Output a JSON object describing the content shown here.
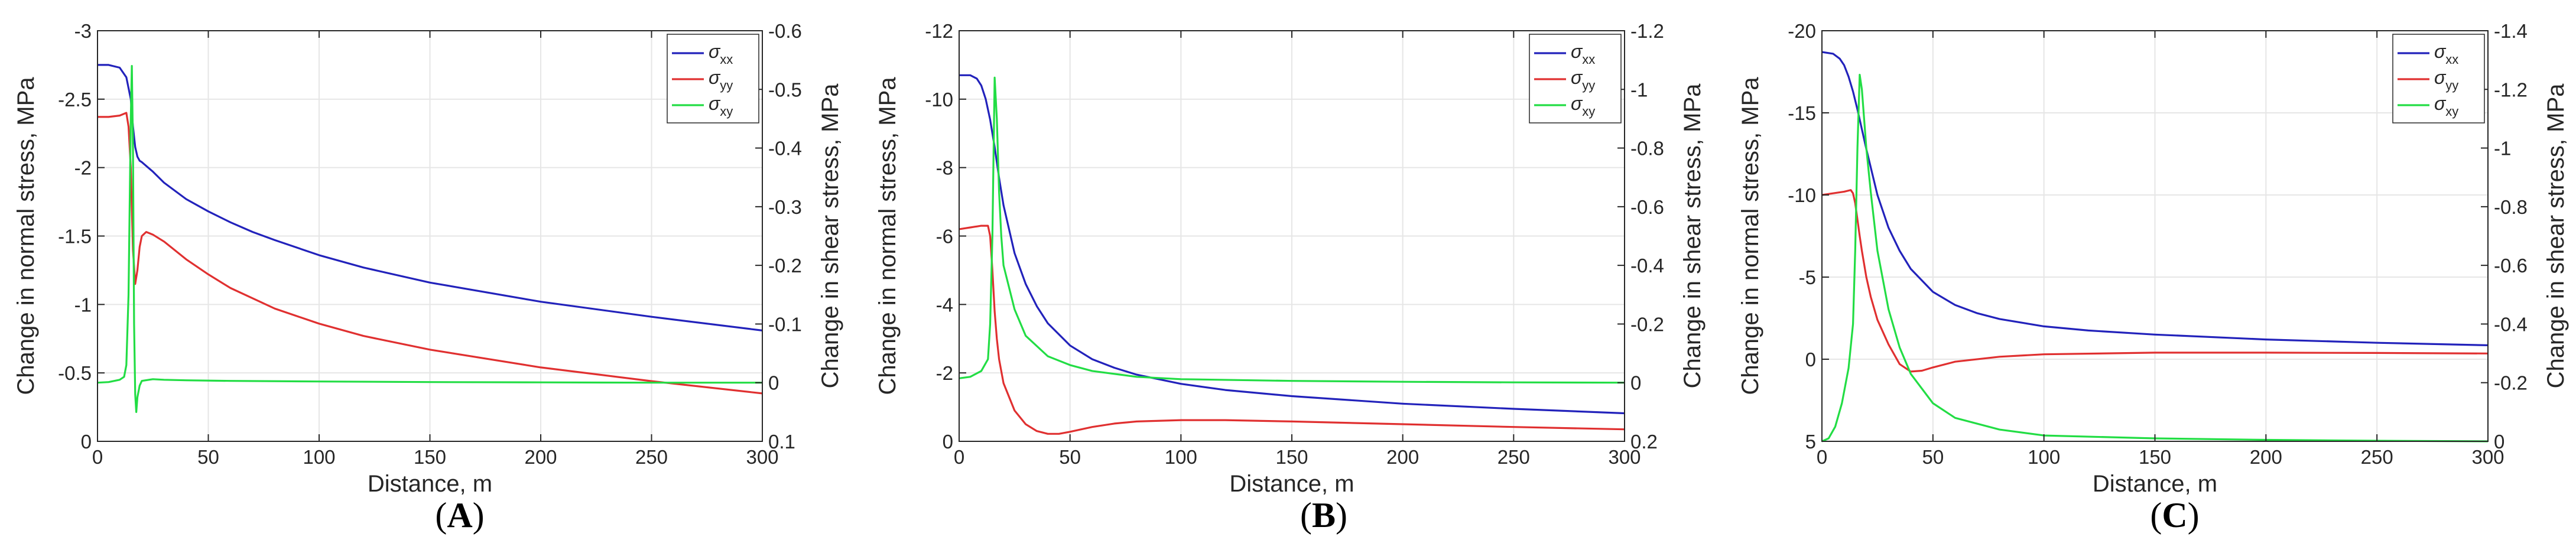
{
  "chart_data": [
    {
      "type": "line",
      "panel_label": "A",
      "xlabel": "Distance, m",
      "ylabel_left": "Change in normal stress, MPa",
      "ylabel_right": "Change in shear stress, MPa",
      "xlim": [
        0,
        300
      ],
      "ylim_left": [
        0,
        -3
      ],
      "ylim_right": [
        0.1,
        -0.6
      ],
      "y_axes_reversed": true,
      "grid": true,
      "legend_position": "top-right",
      "xticks": [
        0,
        50,
        100,
        150,
        200,
        250,
        300
      ],
      "yticks_left": [
        0,
        -0.5,
        -1,
        -1.5,
        -2,
        -2.5,
        -3
      ],
      "yticks_left_labels": [
        "0",
        "-0.5",
        "-1",
        "-1.5",
        "-2",
        "-2.5",
        "-3"
      ],
      "yticks_right": [
        0.1,
        0,
        -0.1,
        -0.2,
        -0.3,
        -0.4,
        -0.5,
        -0.6
      ],
      "yticks_right_labels": [
        "0.1",
        "0",
        "-0.1",
        "-0.2",
        "-0.3",
        "-0.4",
        "-0.5",
        "-0.6"
      ],
      "series": [
        {
          "name": "σxx",
          "symbol": "σ",
          "subscript": "xx",
          "color": "#2222bb",
          "axis": "left",
          "x": [
            0,
            5,
            10,
            13,
            15,
            16,
            17,
            18,
            19,
            20,
            25,
            30,
            40,
            50,
            60,
            70,
            80,
            100,
            120,
            150,
            200,
            250,
            300
          ],
          "y": [
            -2.75,
            -2.75,
            -2.73,
            -2.66,
            -2.5,
            -2.3,
            -2.15,
            -2.08,
            -2.05,
            -2.04,
            -1.97,
            -1.89,
            -1.77,
            -1.68,
            -1.6,
            -1.53,
            -1.47,
            -1.36,
            -1.27,
            -1.16,
            -1.02,
            -0.91,
            -0.81
          ]
        },
        {
          "name": "σyy",
          "symbol": "σ",
          "subscript": "yy",
          "color": "#e03030",
          "axis": "left",
          "x": [
            0,
            5,
            10,
            13,
            14,
            15,
            16,
            17,
            18,
            19,
            20,
            22,
            25,
            30,
            40,
            50,
            60,
            80,
            100,
            120,
            150,
            200,
            250,
            300
          ],
          "y": [
            -2.37,
            -2.37,
            -2.38,
            -2.4,
            -2.3,
            -2.0,
            -1.4,
            -1.15,
            -1.25,
            -1.42,
            -1.5,
            -1.53,
            -1.51,
            -1.46,
            -1.33,
            -1.22,
            -1.12,
            -0.97,
            -0.86,
            -0.77,
            -0.67,
            -0.54,
            -0.44,
            -0.35
          ]
        },
        {
          "name": "σxy",
          "symbol": "σ",
          "subscript": "xy",
          "color": "#22dd44",
          "axis": "right",
          "x": [
            0,
            5,
            10,
            12,
            13,
            14,
            15,
            15.5,
            16,
            16.5,
            17,
            17.5,
            18,
            19,
            20,
            25,
            30,
            40,
            60,
            100,
            150,
            200,
            250,
            300
          ],
          "y": [
            0.0,
            -0.001,
            -0.005,
            -0.01,
            -0.03,
            -0.15,
            -0.45,
            -0.54,
            -0.4,
            -0.1,
            0.02,
            0.05,
            0.025,
            0.005,
            -0.003,
            -0.006,
            -0.005,
            -0.004,
            -0.003,
            -0.002,
            -0.001,
            -0.0005,
            0.0,
            0.0
          ]
        }
      ]
    },
    {
      "type": "line",
      "panel_label": "B",
      "xlabel": "Distance, m",
      "ylabel_left": "Change in normal stress, MPa",
      "ylabel_right": "Change in shear stress, MPa",
      "xlim": [
        0,
        300
      ],
      "ylim_left": [
        0,
        -12
      ],
      "ylim_right": [
        0.2,
        -1.2
      ],
      "y_axes_reversed": true,
      "grid": true,
      "legend_position": "top-right",
      "xticks": [
        0,
        50,
        100,
        150,
        200,
        250,
        300
      ],
      "yticks_left": [
        0,
        -2,
        -4,
        -6,
        -8,
        -10,
        -12
      ],
      "yticks_left_labels": [
        "0",
        "-2",
        "-4",
        "-6",
        "-8",
        "-10",
        "-12"
      ],
      "yticks_right": [
        0.2,
        0,
        -0.2,
        -0.4,
        -0.6,
        -0.8,
        -1,
        -1.2
      ],
      "yticks_right_labels": [
        "0.2",
        "0",
        "-0.2",
        "-0.4",
        "-0.6",
        "-0.8",
        "-1",
        "-1.2"
      ],
      "series": [
        {
          "name": "σxx",
          "symbol": "σ",
          "subscript": "xx",
          "color": "#2222bb",
          "axis": "left",
          "x": [
            0,
            5,
            8,
            10,
            12,
            14,
            16,
            18,
            20,
            25,
            30,
            35,
            40,
            50,
            60,
            70,
            80,
            100,
            120,
            150,
            200,
            250,
            300
          ],
          "y": [
            -10.7,
            -10.7,
            -10.6,
            -10.4,
            -10.0,
            -9.4,
            -8.6,
            -7.7,
            -6.9,
            -5.5,
            -4.6,
            -3.95,
            -3.45,
            -2.8,
            -2.4,
            -2.15,
            -1.95,
            -1.68,
            -1.5,
            -1.32,
            -1.1,
            -0.95,
            -0.82
          ]
        },
        {
          "name": "σyy",
          "symbol": "σ",
          "subscript": "yy",
          "color": "#e03030",
          "axis": "left",
          "x": [
            0,
            5,
            10,
            13,
            14,
            15,
            16,
            17,
            18,
            20,
            25,
            30,
            35,
            40,
            45,
            50,
            60,
            70,
            80,
            100,
            120,
            150,
            200,
            250,
            300
          ],
          "y": [
            -6.2,
            -6.25,
            -6.3,
            -6.3,
            -6.0,
            -5.0,
            -3.8,
            -3.0,
            -2.4,
            -1.7,
            -0.9,
            -0.5,
            -0.3,
            -0.22,
            -0.22,
            -0.28,
            -0.42,
            -0.52,
            -0.58,
            -0.62,
            -0.62,
            -0.58,
            -0.5,
            -0.42,
            -0.35
          ]
        },
        {
          "name": "σxy",
          "symbol": "σ",
          "subscript": "xy",
          "color": "#22dd44",
          "axis": "right",
          "x": [
            0,
            5,
            10,
            13,
            14,
            15,
            16,
            17,
            18,
            19,
            20,
            25,
            30,
            40,
            50,
            60,
            80,
            100,
            150,
            200,
            250,
            300
          ],
          "y": [
            -0.015,
            -0.02,
            -0.04,
            -0.08,
            -0.2,
            -0.5,
            -1.04,
            -0.9,
            -0.65,
            -0.5,
            -0.4,
            -0.25,
            -0.16,
            -0.09,
            -0.06,
            -0.04,
            -0.02,
            -0.012,
            -0.006,
            -0.003,
            -0.001,
            0.0
          ]
        }
      ]
    },
    {
      "type": "line",
      "panel_label": "C",
      "xlabel": "Distance, m",
      "ylabel_left": "Change in normal stress, MPa",
      "ylabel_right": "Change in shear stress, MPa",
      "xlim": [
        0,
        300
      ],
      "ylim_left": [
        5,
        -20
      ],
      "ylim_right": [
        0,
        -1.4
      ],
      "y_axes_reversed": true,
      "grid": true,
      "legend_position": "top-right",
      "xticks": [
        0,
        50,
        100,
        150,
        200,
        250,
        300
      ],
      "yticks_left": [
        5,
        0,
        -5,
        -10,
        -15,
        -20
      ],
      "yticks_left_labels": [
        "5",
        "0",
        "-5",
        "-10",
        "-15",
        "-20"
      ],
      "yticks_right": [
        0,
        -0.2,
        -0.4,
        -0.6,
        -0.8,
        -1,
        -1.2,
        -1.4
      ],
      "yticks_right_labels": [
        "0",
        "-0.2",
        "-0.4",
        "-0.6",
        "-0.8",
        "-1",
        "-1.2",
        "-1.4"
      ],
      "series": [
        {
          "name": "σxx",
          "symbol": "σ",
          "subscript": "xx",
          "color": "#2222bb",
          "axis": "left",
          "x": [
            0,
            5,
            8,
            10,
            12,
            14,
            16,
            18,
            20,
            25,
            30,
            35,
            40,
            50,
            60,
            70,
            80,
            100,
            120,
            150,
            200,
            250,
            300
          ],
          "y": [
            -18.7,
            -18.6,
            -18.3,
            -17.9,
            -17.2,
            -16.3,
            -15.2,
            -14.0,
            -12.8,
            -10.0,
            -8.0,
            -6.6,
            -5.5,
            -4.1,
            -3.3,
            -2.8,
            -2.45,
            -2.0,
            -1.75,
            -1.5,
            -1.2,
            -1.0,
            -0.85
          ]
        },
        {
          "name": "σyy",
          "symbol": "σ",
          "subscript": "yy",
          "color": "#e03030",
          "axis": "left",
          "x": [
            0,
            5,
            10,
            13,
            14,
            15,
            16,
            17,
            18,
            20,
            22,
            25,
            30,
            35,
            40,
            45,
            50,
            60,
            80,
            100,
            150,
            200,
            250,
            300
          ],
          "y": [
            -10.0,
            -10.1,
            -10.2,
            -10.3,
            -10.1,
            -9.5,
            -8.5,
            -7.5,
            -6.6,
            -5.0,
            -3.8,
            -2.4,
            -0.9,
            0.3,
            0.75,
            0.7,
            0.5,
            0.15,
            -0.15,
            -0.3,
            -0.4,
            -0.4,
            -0.38,
            -0.35
          ]
        },
        {
          "name": "σxy",
          "symbol": "σ",
          "subscript": "xy",
          "color": "#22dd44",
          "axis": "right",
          "x": [
            0,
            3,
            6,
            9,
            12,
            14,
            15,
            16,
            17,
            18,
            20,
            22,
            25,
            30,
            35,
            40,
            50,
            60,
            80,
            100,
            150,
            200,
            250,
            300
          ],
          "y": [
            0.0,
            -0.01,
            -0.05,
            -0.13,
            -0.25,
            -0.4,
            -0.65,
            -1.0,
            -1.25,
            -1.2,
            -1.0,
            -0.85,
            -0.65,
            -0.45,
            -0.32,
            -0.23,
            -0.13,
            -0.08,
            -0.04,
            -0.02,
            -0.01,
            -0.005,
            -0.002,
            0.0
          ]
        }
      ]
    }
  ]
}
